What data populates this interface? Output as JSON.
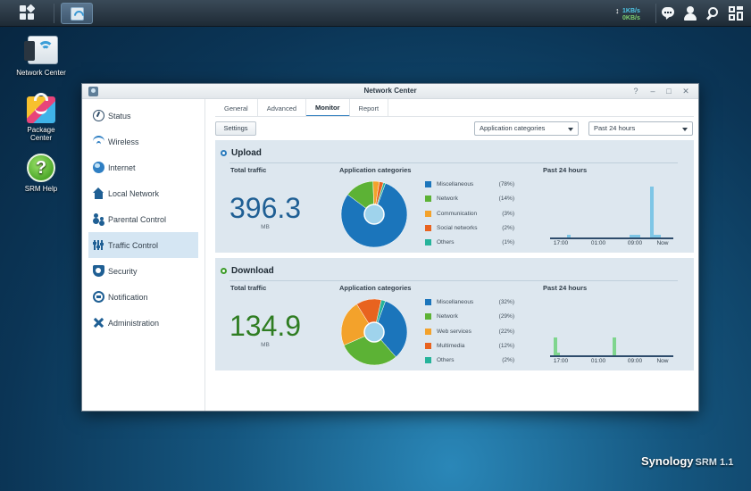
{
  "taskbar": {
    "upload_rate": "1KB/s",
    "download_rate": "0KB/s"
  },
  "desktop": {
    "icons": [
      {
        "label": "Network Center"
      },
      {
        "label": "Package Center"
      },
      {
        "label": "SRM Help"
      }
    ],
    "brand": "Synology",
    "product": "SRM 1.1"
  },
  "window": {
    "title": "Network Center",
    "controls": [
      "?",
      "–",
      "□",
      "✕"
    ],
    "sidebar": [
      {
        "label": "Status",
        "icon": "status-icon"
      },
      {
        "label": "Wireless",
        "icon": "wifi-icon"
      },
      {
        "label": "Internet",
        "icon": "globe-icon"
      },
      {
        "label": "Local Network",
        "icon": "home-icon"
      },
      {
        "label": "Parental Control",
        "icon": "parental-icon"
      },
      {
        "label": "Traffic Control",
        "icon": "traffic-icon",
        "active": true
      },
      {
        "label": "Security",
        "icon": "shield-icon"
      },
      {
        "label": "Notification",
        "icon": "notification-icon"
      },
      {
        "label": "Administration",
        "icon": "tools-icon"
      }
    ],
    "tabs": [
      {
        "label": "General"
      },
      {
        "label": "Advanced"
      },
      {
        "label": "Monitor",
        "active": true
      },
      {
        "label": "Report"
      }
    ],
    "settings_label": "Settings",
    "category_select": "Application categories",
    "time_select": "Past 24 hours",
    "labels": {
      "total_traffic": "Total traffic",
      "app_categories": "Application categories",
      "past_24": "Past 24 hours"
    },
    "upload": {
      "title": "Upload",
      "total": "396.3",
      "unit": "MB",
      "color": "#1f5f94",
      "legend": [
        {
          "name": "Miscellaneous",
          "pct": "(78%)",
          "color": "#1b75bb",
          "value": 78
        },
        {
          "name": "Network",
          "pct": "(14%)",
          "color": "#5cb235",
          "value": 14
        },
        {
          "name": "Communication",
          "pct": "(3%)",
          "color": "#f3a22b",
          "value": 3
        },
        {
          "name": "Social networks",
          "pct": "(2%)",
          "color": "#e8631f",
          "value": 2
        },
        {
          "name": "Others",
          "pct": "(1%)",
          "color": "#26b39a",
          "value": 1
        }
      ]
    },
    "download": {
      "title": "Download",
      "total": "134.9",
      "unit": "MB",
      "color": "#2f7d22",
      "legend": [
        {
          "name": "Miscellaneous",
          "pct": "(32%)",
          "color": "#1b75bb",
          "value": 32
        },
        {
          "name": "Network",
          "pct": "(29%)",
          "color": "#5cb235",
          "value": 29
        },
        {
          "name": "Web services",
          "pct": "(22%)",
          "color": "#f3a22b",
          "value": 22
        },
        {
          "name": "Multimedia",
          "pct": "(12%)",
          "color": "#e8631f",
          "value": 12
        },
        {
          "name": "Others",
          "pct": "(2%)",
          "color": "#26b39a",
          "value": 2
        }
      ]
    },
    "x_ticks": [
      "17:00",
      "01:00",
      "09:00",
      "Now"
    ]
  },
  "chart_data": [
    {
      "type": "bar",
      "title": "Past 24 hours",
      "series": [
        {
          "name": "Upload",
          "color": "#7ec6e6",
          "values": [
            0,
            0,
            0,
            0,
            1,
            0,
            0,
            0,
            0,
            0,
            0,
            0,
            0,
            0,
            0,
            0,
            0,
            0,
            0,
            0,
            0,
            0,
            1,
            1,
            1,
            0,
            0,
            0,
            17,
            1,
            1
          ]
        }
      ],
      "x_ticks": [
        "17:00",
        "01:00",
        "09:00",
        "Now"
      ],
      "ylim": [
        0,
        18
      ]
    },
    {
      "type": "bar",
      "title": "Past 24 hours",
      "series": [
        {
          "name": "Download",
          "color": "#7fd58e",
          "values": [
            6,
            1,
            0,
            0,
            0,
            0,
            0,
            0,
            0,
            0,
            0,
            0,
            0,
            0,
            0,
            0,
            0,
            0,
            0,
            0,
            0,
            0,
            6,
            0,
            0,
            0,
            0,
            0,
            0,
            0,
            0,
            0,
            0,
            0,
            0,
            0,
            0,
            0,
            0,
            0
          ]
        }
      ],
      "x_ticks": [
        "17:00",
        "01:00",
        "09:00",
        "Now"
      ],
      "ylim": [
        0,
        18
      ]
    },
    {
      "type": "pie",
      "title": "Upload application categories",
      "slices": [
        {
          "label": "Miscellaneous",
          "value": 78
        },
        {
          "label": "Network",
          "value": 14
        },
        {
          "label": "Communication",
          "value": 3
        },
        {
          "label": "Social networks",
          "value": 2
        },
        {
          "label": "Others",
          "value": 1
        }
      ]
    },
    {
      "type": "pie",
      "title": "Download application categories",
      "slices": [
        {
          "label": "Miscellaneous",
          "value": 32
        },
        {
          "label": "Network",
          "value": 29
        },
        {
          "label": "Web services",
          "value": 22
        },
        {
          "label": "Multimedia",
          "value": 12
        },
        {
          "label": "Others",
          "value": 2
        }
      ]
    }
  ]
}
